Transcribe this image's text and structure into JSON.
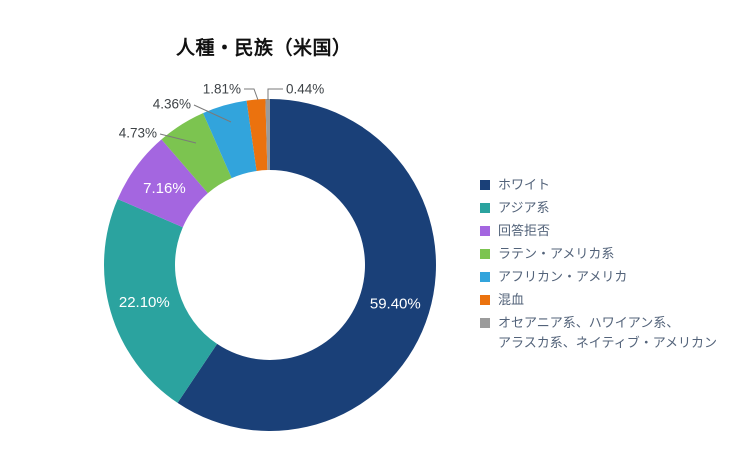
{
  "chart_data": {
    "type": "pie",
    "subtype": "donut",
    "title": "人種・民族（米国）",
    "categories": [
      "ホワイト",
      "アジア系",
      "回答拒否",
      "ラテン・アメリカ系",
      "アフリカン・アメリカ",
      "混血",
      "オセアニア系、ハワイアン系、アラスカ系、ネイティブ・アメリカン"
    ],
    "values": [
      59.4,
      22.1,
      7.16,
      4.73,
      4.36,
      1.81,
      0.44
    ],
    "value_labels": [
      "59.40%",
      "22.10%",
      "7.16%",
      "4.73%",
      "4.36%",
      "1.81%",
      "0.44%"
    ],
    "colors": [
      "#1a4078",
      "#2ba39f",
      "#a466e0",
      "#7cc450",
      "#32a4dc",
      "#eb720e",
      "#9b9b9b"
    ],
    "start_angle_deg": 0,
    "direction": "clockwise",
    "inner_radius_ratio": 0.57,
    "legend_position": "right",
    "label_color_inside": "#ffffff",
    "label_color_outside": "#3e4347"
  },
  "legend": {
    "items": [
      {
        "label": "ホワイト",
        "color": "#1a4078",
        "lines": [
          "ホワイト"
        ]
      },
      {
        "label": "アジア系",
        "color": "#2ba39f",
        "lines": [
          "アジア系"
        ]
      },
      {
        "label": "回答拒否",
        "color": "#a466e0",
        "lines": [
          "回答拒否"
        ]
      },
      {
        "label": "ラテン・アメリカ系",
        "color": "#7cc450",
        "lines": [
          "ラテン・アメリカ系"
        ]
      },
      {
        "label": "アフリカン・アメリカ",
        "color": "#32a4dc",
        "lines": [
          "アフリカン・アメリカ"
        ]
      },
      {
        "label": "混血",
        "color": "#eb720e",
        "lines": [
          "混血"
        ]
      },
      {
        "label": "オセアニア系、ハワイアン系、アラスカ系、ネイティブ・アメリカン",
        "color": "#9b9b9b",
        "lines": [
          "オセアニア系、ハワイアン系、",
          "アラスカ系、ネイティブ・アメリカン"
        ]
      }
    ]
  }
}
